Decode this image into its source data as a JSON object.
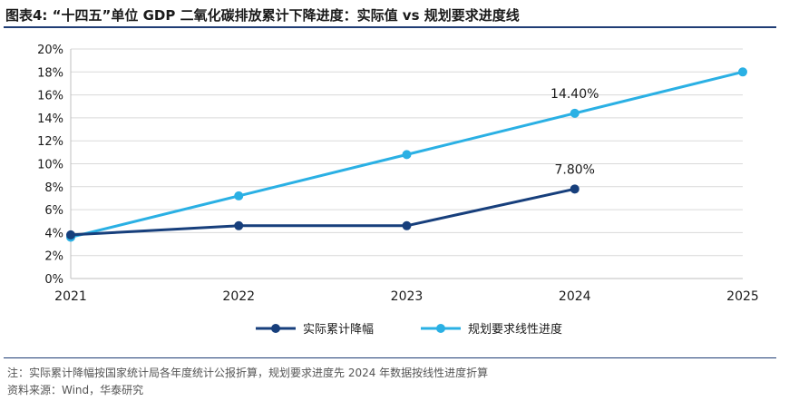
{
  "header": {
    "title": "图表4:  “十四五”单位 GDP 二氧化碳排放累计下降进度：实际值 vs 规划要求进度线"
  },
  "chart_data": {
    "type": "line",
    "title": "",
    "xlabel": "",
    "ylabel": "",
    "categories": [
      "2021",
      "2022",
      "2023",
      "2024",
      "2025"
    ],
    "y_ticks": [
      "0%",
      "2%",
      "4%",
      "6%",
      "8%",
      "10%",
      "12%",
      "14%",
      "16%",
      "18%",
      "20%"
    ],
    "ylim": [
      0,
      20
    ],
    "grid": true,
    "legend": "bottom",
    "series": [
      {
        "name": "实际累计降幅",
        "color": "#173f7c",
        "values": [
          3.8,
          4.6,
          4.6,
          7.8,
          null
        ],
        "labels": [
          null,
          null,
          null,
          "7.80%",
          null
        ]
      },
      {
        "name": "规划要求线性进度",
        "color": "#2ab0e4",
        "values": [
          3.6,
          7.2,
          10.8,
          14.4,
          18.0
        ],
        "labels": [
          null,
          null,
          null,
          "14.40%",
          null
        ]
      }
    ]
  },
  "footer": {
    "note": "注：实际累计降幅按国家统计局各年度统计公报折算，规划要求进度先 2024 年数据按线性进度折算",
    "source": "资料来源：Wind，华泰研究"
  }
}
